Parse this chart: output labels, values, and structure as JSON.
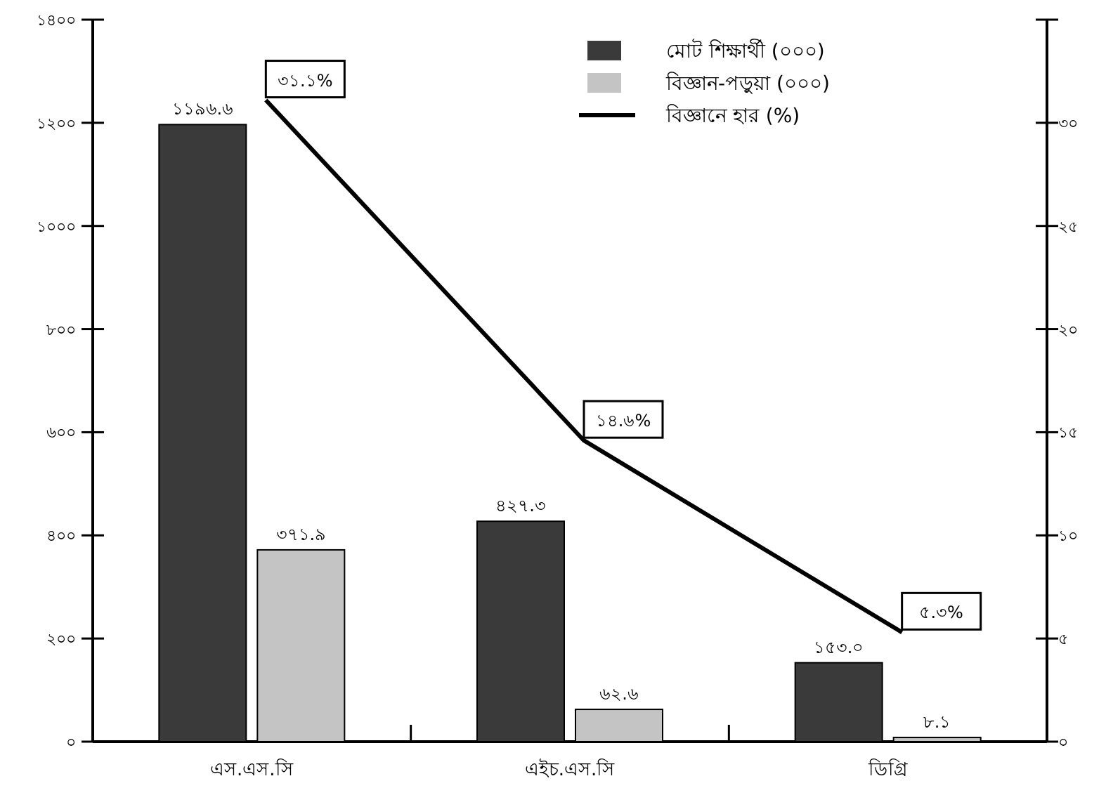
{
  "chart_data": {
    "type": "bar",
    "categories": [
      "এস.এস.সি",
      "এইচ.এস.সি",
      "ডিগ্রি"
    ],
    "series": [
      {
        "name": "মোট শিক্ষার্থী (০০০)",
        "color": "#3a3a3a",
        "values": [
          1196.6,
          427.3,
          153.0
        ],
        "value_labels": [
          "১১৯৬.৬",
          "৪২৭.৩",
          "১৫৩.০"
        ]
      },
      {
        "name": "বিজ্ঞান-পড়ুয়া (০০০)",
        "color": "#c4c4c4",
        "values": [
          371.9,
          62.6,
          8.1
        ],
        "value_labels": [
          "৩৭১.৯",
          "৬২.৬",
          "৮.১"
        ]
      },
      {
        "name": "বিজ্ঞানে হার (%)",
        "type": "line",
        "axis": "y2",
        "color": "#000000",
        "values": [
          31.1,
          14.6,
          5.3
        ],
        "value_labels": [
          "৩১.১%",
          "১৪.৬%",
          "৫.৩%"
        ]
      }
    ],
    "ylim": [
      0,
      1400
    ],
    "yticks": [
      {
        "value": 0,
        "label": "০"
      },
      {
        "value": 200,
        "label": "২০০"
      },
      {
        "value": 400,
        "label": "৪০০"
      },
      {
        "value": 600,
        "label": "৬০০"
      },
      {
        "value": 800,
        "label": "৮০০"
      },
      {
        "value": 1000,
        "label": "১০০০"
      },
      {
        "value": 1200,
        "label": "১২০০"
      },
      {
        "value": 1400,
        "label": "১৪০০"
      }
    ],
    "y2lim": [
      0,
      35
    ],
    "y2ticks": [
      {
        "value": 0,
        "label": "০"
      },
      {
        "value": 5,
        "label": "৫"
      },
      {
        "value": 10,
        "label": "১০"
      },
      {
        "value": 15,
        "label": "১৫"
      },
      {
        "value": 20,
        "label": "২০"
      },
      {
        "value": 25,
        "label": "২৫"
      },
      {
        "value": 30,
        "label": "৩০"
      },
      {
        "value": 35,
        "label": null
      }
    ],
    "legend": "top right",
    "grid": false
  }
}
